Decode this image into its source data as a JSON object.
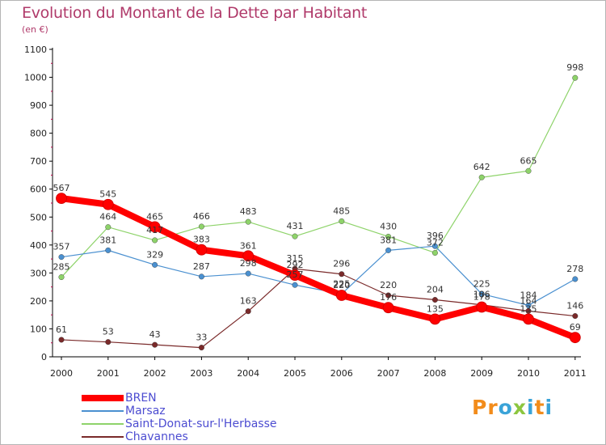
{
  "title": "Evolution du Montant de la Dette par Habitant",
  "unit": "(en €)",
  "logo": {
    "letters": [
      "P",
      "r",
      "o",
      "x",
      "i",
      "t",
      "i"
    ],
    "colors": [
      "#f28c1b",
      "#f28c1b",
      "#3aa3d8",
      "#8cc63f",
      "#3aa3d8",
      "#f28c1b",
      "#3aa3d8"
    ]
  },
  "chart_data": {
    "type": "line",
    "title": "Evolution du Montant de la Dette par Habitant",
    "ylabel": "(en €)",
    "xlabel": "",
    "x": [
      "2000",
      "2001",
      "2002",
      "2003",
      "2004",
      "2005",
      "2006",
      "2007",
      "2008",
      "2009",
      "2010",
      "2011"
    ],
    "ylim": [
      0,
      1100
    ],
    "yticks": [
      "0",
      "100",
      "200",
      "300",
      "400",
      "500",
      "600",
      "700",
      "800",
      "900",
      "1000",
      "1100"
    ],
    "grid": false,
    "legend": "bottom-left",
    "series": [
      {
        "name": "BREN",
        "color": "#ff0000",
        "values": [
          567,
          545,
          465,
          383,
          361,
          292,
          220,
          176,
          135,
          178,
          135,
          69
        ],
        "labels": [
          "567",
          "545",
          "465",
          "383",
          "361",
          "292",
          "220",
          "176",
          "135",
          "178",
          "135",
          "69"
        ]
      },
      {
        "name": "Marsaz",
        "color": "#4a90d0",
        "values": [
          357,
          381,
          329,
          287,
          298,
          257,
          225,
          381,
          396,
          225,
          184,
          278
        ],
        "labels": [
          "357",
          "381",
          "329",
          "287",
          "298",
          "257",
          "225",
          "381",
          "396",
          "225",
          "184",
          "278"
        ]
      },
      {
        "name": "Saint-Donat-sur-l'Herbasse",
        "color": "#8ed36a",
        "values": [
          285,
          464,
          417,
          466,
          483,
          431,
          485,
          430,
          372,
          642,
          665,
          998
        ],
        "labels": [
          "285",
          "464",
          "417",
          "466",
          "483",
          "431",
          "485",
          "430",
          "372",
          "642",
          "665",
          "998"
        ]
      },
      {
        "name": "Chavannes",
        "color": "#7a2a2a",
        "values": [
          61,
          53,
          43,
          33,
          163,
          315,
          296,
          220,
          204,
          186,
          164,
          146
        ],
        "labels": [
          "61",
          "53",
          "43",
          "33",
          "163",
          "315",
          "296",
          "220",
          "204",
          "186",
          "164",
          "146"
        ]
      }
    ]
  }
}
